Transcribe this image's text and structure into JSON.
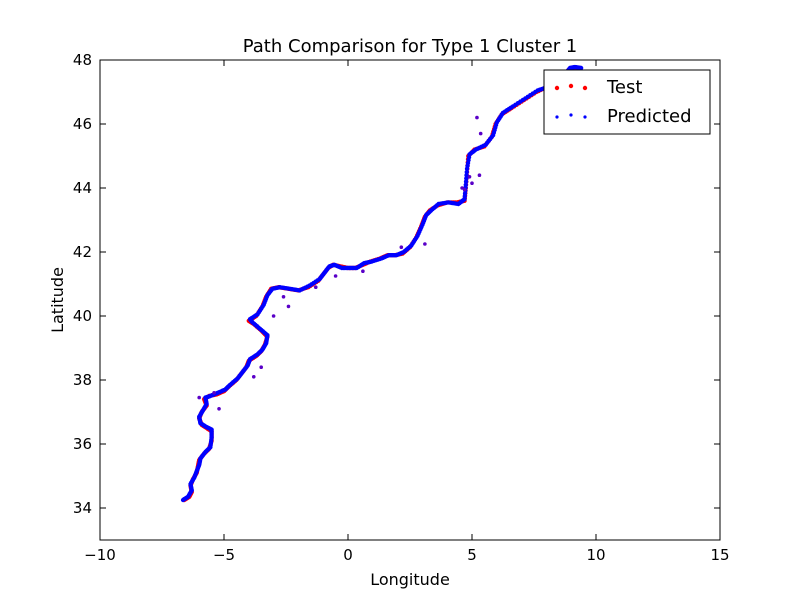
{
  "chart_data": {
    "type": "scatter",
    "title": "Path Comparison for Type 1 Cluster 1",
    "xlabel": "Longitude",
    "ylabel": "Latitude",
    "xlim": [
      -10,
      15
    ],
    "ylim": [
      33,
      48
    ],
    "xticks": [
      -10,
      -5,
      0,
      5,
      10,
      15
    ],
    "yticks": [
      34,
      36,
      38,
      40,
      42,
      44,
      46,
      48
    ],
    "xtick_labels": [
      "−10",
      "−5",
      "0",
      "5",
      "10",
      "15"
    ],
    "ytick_labels": [
      "34",
      "36",
      "38",
      "40",
      "42",
      "44",
      "46",
      "48"
    ],
    "grid": false,
    "legend_position": "top-right",
    "series": [
      {
        "name": "Test",
        "color": "#ff0000",
        "points": [
          [
            -6.6,
            34.25
          ],
          [
            -6.4,
            34.35
          ],
          [
            -6.3,
            34.5
          ],
          [
            -6.35,
            34.7
          ],
          [
            -6.25,
            34.9
          ],
          [
            -6.1,
            35.1
          ],
          [
            -6.05,
            35.3
          ],
          [
            -6.0,
            35.5
          ],
          [
            -5.8,
            35.7
          ],
          [
            -5.6,
            35.85
          ],
          [
            -5.5,
            36.1
          ],
          [
            -5.5,
            36.4
          ],
          [
            -5.7,
            36.5
          ],
          [
            -5.9,
            36.6
          ],
          [
            -6.0,
            36.8
          ],
          [
            -5.9,
            37.0
          ],
          [
            -5.7,
            37.2
          ],
          [
            -5.8,
            37.4
          ],
          [
            -5.6,
            37.5
          ],
          [
            -5.3,
            37.55
          ],
          [
            -5.0,
            37.65
          ],
          [
            -4.8,
            37.8
          ],
          [
            -4.5,
            38.0
          ],
          [
            -4.3,
            38.2
          ],
          [
            -4.1,
            38.4
          ],
          [
            -4.0,
            38.6
          ],
          [
            -3.7,
            38.75
          ],
          [
            -3.5,
            38.9
          ],
          [
            -3.35,
            39.1
          ],
          [
            -3.25,
            39.35
          ],
          [
            -3.5,
            39.55
          ],
          [
            -3.8,
            39.75
          ],
          [
            -4.0,
            39.85
          ],
          [
            -3.7,
            40.0
          ],
          [
            -3.45,
            40.3
          ],
          [
            -3.3,
            40.6
          ],
          [
            -3.1,
            40.85
          ],
          [
            -2.8,
            40.9
          ],
          [
            -2.4,
            40.85
          ],
          [
            -2.0,
            40.8
          ],
          [
            -1.6,
            40.9
          ],
          [
            -1.2,
            41.1
          ],
          [
            -1.0,
            41.3
          ],
          [
            -0.8,
            41.5
          ],
          [
            -0.6,
            41.6
          ],
          [
            -0.3,
            41.55
          ],
          [
            0.0,
            41.5
          ],
          [
            0.3,
            41.5
          ],
          [
            0.6,
            41.6
          ],
          [
            0.9,
            41.7
          ],
          [
            1.3,
            41.8
          ],
          [
            1.6,
            41.9
          ],
          [
            1.9,
            41.9
          ],
          [
            2.2,
            41.95
          ],
          [
            2.5,
            42.15
          ],
          [
            2.75,
            42.45
          ],
          [
            2.95,
            42.8
          ],
          [
            3.1,
            43.1
          ],
          [
            3.3,
            43.3
          ],
          [
            3.6,
            43.45
          ],
          [
            4.0,
            43.55
          ],
          [
            4.4,
            43.55
          ],
          [
            4.7,
            43.6
          ],
          [
            4.75,
            44.0
          ],
          [
            4.8,
            44.5
          ],
          [
            4.85,
            45.0
          ],
          [
            5.1,
            45.2
          ],
          [
            5.5,
            45.3
          ],
          [
            5.8,
            45.6
          ],
          [
            5.95,
            46.0
          ],
          [
            6.2,
            46.3
          ],
          [
            6.6,
            46.5
          ],
          [
            7.1,
            46.75
          ],
          [
            7.6,
            47.0
          ],
          [
            8.0,
            47.15
          ],
          [
            8.4,
            47.3
          ],
          [
            8.7,
            47.5
          ],
          [
            8.9,
            47.7
          ],
          [
            9.1,
            47.75
          ],
          [
            9.35,
            47.75
          ]
        ]
      },
      {
        "name": "Predicted",
        "color": "#0000ff",
        "points": [
          [
            -6.65,
            34.25
          ],
          [
            -6.45,
            34.35
          ],
          [
            -6.3,
            34.55
          ],
          [
            -6.35,
            34.75
          ],
          [
            -6.2,
            34.95
          ],
          [
            -6.1,
            35.15
          ],
          [
            -6.0,
            35.35
          ],
          [
            -5.95,
            35.55
          ],
          [
            -5.75,
            35.75
          ],
          [
            -5.55,
            35.9
          ],
          [
            -5.5,
            36.2
          ],
          [
            -5.5,
            36.45
          ],
          [
            -5.75,
            36.55
          ],
          [
            -5.95,
            36.65
          ],
          [
            -6.0,
            36.85
          ],
          [
            -5.85,
            37.05
          ],
          [
            -5.7,
            37.25
          ],
          [
            -5.75,
            37.45
          ],
          [
            -5.55,
            37.5
          ],
          [
            -5.25,
            37.6
          ],
          [
            -4.95,
            37.7
          ],
          [
            -4.75,
            37.85
          ],
          [
            -4.45,
            38.05
          ],
          [
            -4.25,
            38.25
          ],
          [
            -4.05,
            38.45
          ],
          [
            -3.95,
            38.65
          ],
          [
            -3.65,
            38.8
          ],
          [
            -3.45,
            38.95
          ],
          [
            -3.3,
            39.15
          ],
          [
            -3.25,
            39.4
          ],
          [
            -3.55,
            39.6
          ],
          [
            -3.85,
            39.8
          ],
          [
            -3.95,
            39.9
          ],
          [
            -3.65,
            40.05
          ],
          [
            -3.4,
            40.35
          ],
          [
            -3.25,
            40.65
          ],
          [
            -3.05,
            40.85
          ],
          [
            -2.75,
            40.9
          ],
          [
            -2.35,
            40.85
          ],
          [
            -1.95,
            40.8
          ],
          [
            -1.55,
            40.95
          ],
          [
            -1.15,
            41.15
          ],
          [
            -0.95,
            41.35
          ],
          [
            -0.75,
            41.55
          ],
          [
            -0.55,
            41.6
          ],
          [
            -0.25,
            41.5
          ],
          [
            0.05,
            41.5
          ],
          [
            0.35,
            41.5
          ],
          [
            0.65,
            41.65
          ],
          [
            0.95,
            41.7
          ],
          [
            1.35,
            41.8
          ],
          [
            1.65,
            41.9
          ],
          [
            1.95,
            41.9
          ],
          [
            2.25,
            42.0
          ],
          [
            2.55,
            42.2
          ],
          [
            2.8,
            42.5
          ],
          [
            3.0,
            42.85
          ],
          [
            3.15,
            43.15
          ],
          [
            3.35,
            43.3
          ],
          [
            3.65,
            43.5
          ],
          [
            4.05,
            43.55
          ],
          [
            4.45,
            43.5
          ],
          [
            4.7,
            43.65
          ],
          [
            4.75,
            44.1
          ],
          [
            4.8,
            44.6
          ],
          [
            4.9,
            45.05
          ],
          [
            5.15,
            45.2
          ],
          [
            5.55,
            45.35
          ],
          [
            5.85,
            45.65
          ],
          [
            6.0,
            46.05
          ],
          [
            6.25,
            46.35
          ],
          [
            6.65,
            46.55
          ],
          [
            7.15,
            46.8
          ],
          [
            7.65,
            47.05
          ],
          [
            8.05,
            47.15
          ],
          [
            8.45,
            47.35
          ],
          [
            8.75,
            47.55
          ],
          [
            8.95,
            47.75
          ],
          [
            9.15,
            47.78
          ],
          [
            9.4,
            47.75
          ]
        ]
      }
    ],
    "outliers": [
      [
        -6.0,
        37.45
      ],
      [
        -5.4,
        37.6
      ],
      [
        -3.0,
        40.0
      ],
      [
        -2.6,
        40.6
      ],
      [
        -2.4,
        40.3
      ],
      [
        -1.3,
        40.9
      ],
      [
        -3.8,
        38.1
      ],
      [
        -3.5,
        38.4
      ],
      [
        -0.5,
        41.25
      ],
      [
        0.6,
        41.4
      ],
      [
        2.15,
        42.15
      ],
      [
        3.1,
        42.25
      ],
      [
        4.7,
        43.95
      ],
      [
        4.9,
        44.35
      ],
      [
        5.0,
        44.15
      ],
      [
        5.3,
        44.4
      ],
      [
        5.2,
        46.2
      ],
      [
        5.35,
        45.7
      ],
      [
        4.6,
        44.0
      ],
      [
        -5.2,
        37.1
      ]
    ]
  }
}
